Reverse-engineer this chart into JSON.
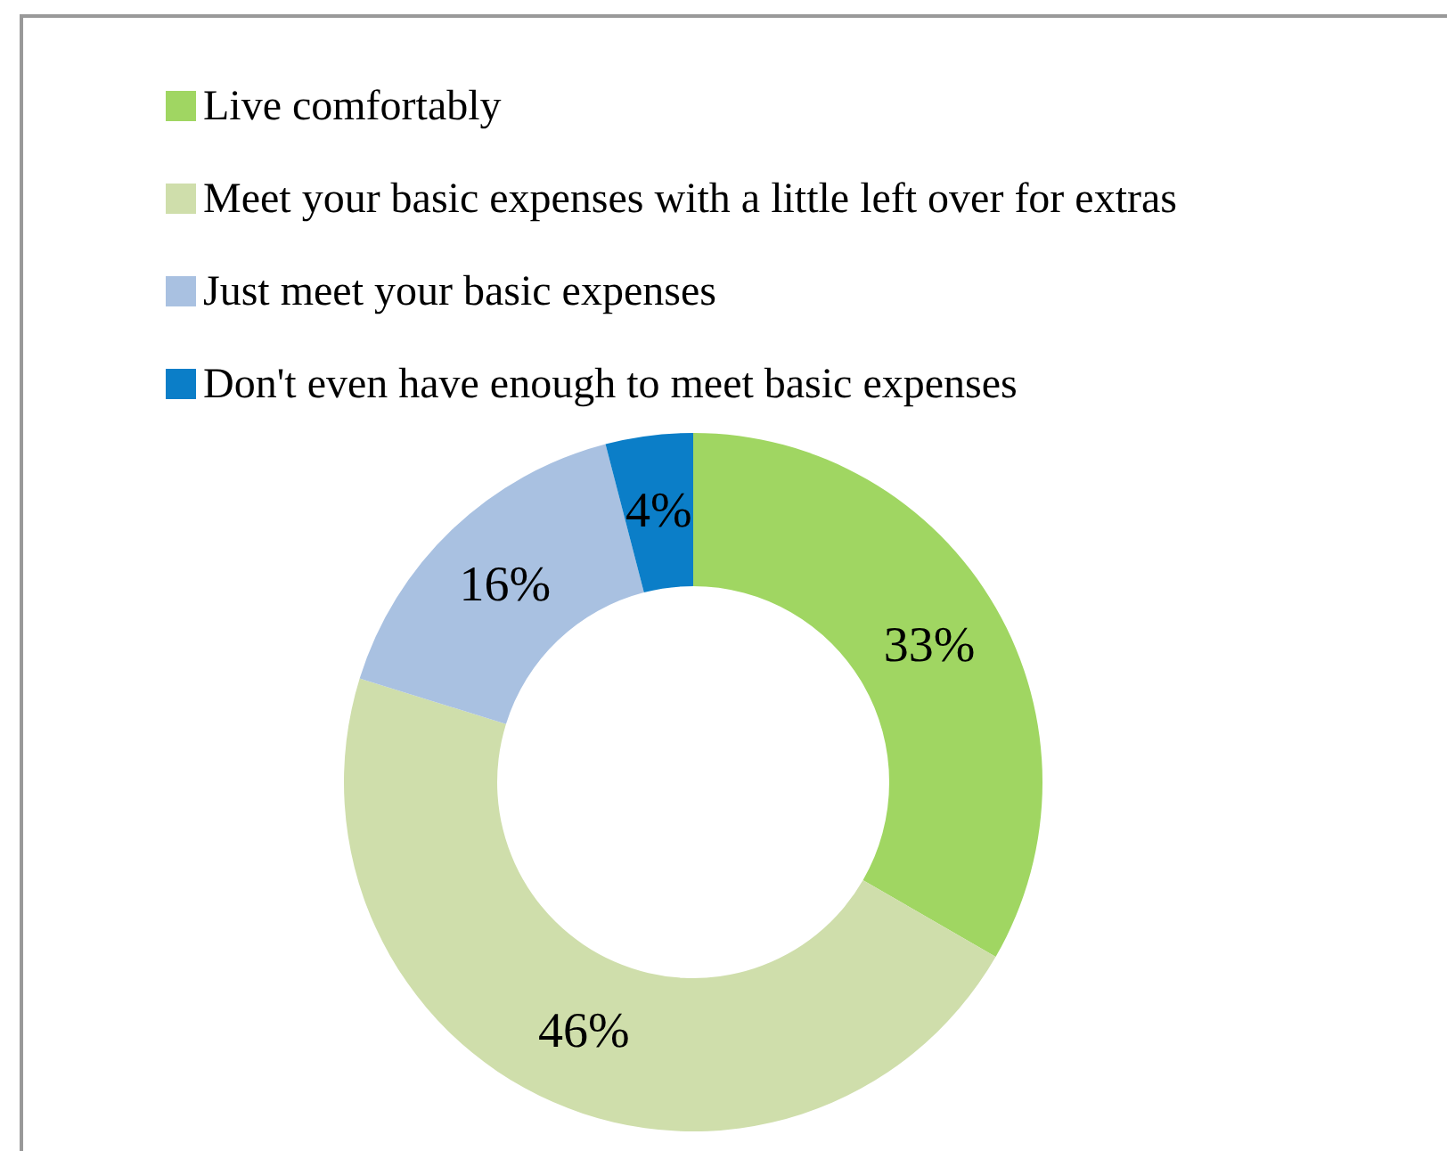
{
  "chart_data": {
    "type": "donut",
    "categories": [
      "Live comfortably",
      "Meet your basic expenses with a little left over for extras",
      "Just meet your basic expenses",
      "Don't even have enough to meet basic expenses"
    ],
    "values": [
      33,
      46,
      16,
      4
    ],
    "colors": [
      "#a0d662",
      "#cfdeab",
      "#a9c1e1",
      "#0b7ec8"
    ],
    "value_labels": [
      "33%",
      "46%",
      "16%",
      "4%"
    ],
    "legend": "top"
  }
}
